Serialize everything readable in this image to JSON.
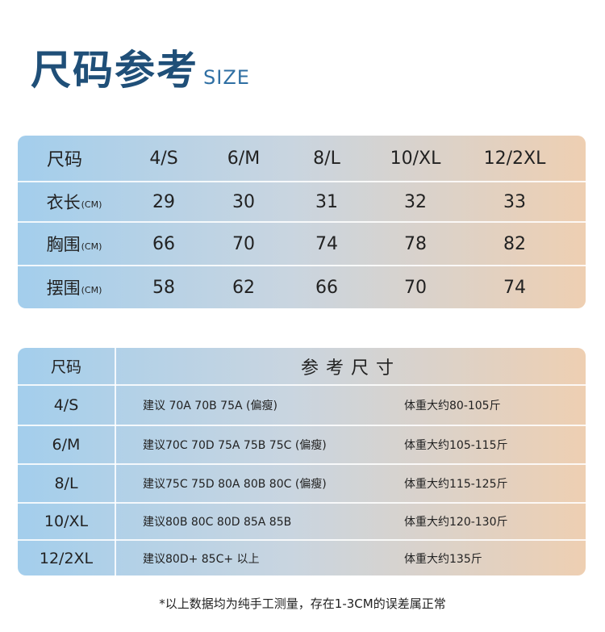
{
  "title": {
    "zh": "尺码参考",
    "en": "SIZE"
  },
  "size_table": {
    "headers": [
      "尺码",
      "4/S",
      "6/M",
      "8/L",
      "10/XL",
      "12/2XL"
    ],
    "rows": [
      {
        "label": "衣长",
        "unit": "(CM)",
        "values": [
          "29",
          "30",
          "31",
          "32",
          "33"
        ]
      },
      {
        "label": "胸围",
        "unit": "(CM)",
        "values": [
          "66",
          "70",
          "74",
          "78",
          "82"
        ]
      },
      {
        "label": "摆围",
        "unit": "(CM)",
        "values": [
          "58",
          "62",
          "66",
          "70",
          "74"
        ]
      }
    ]
  },
  "ref_table": {
    "size_header": "尺码",
    "ref_header": "参考尺寸",
    "rows": [
      {
        "size": "4/S",
        "suggest": "建议 70A 70B 75A (偏瘦)",
        "weight": "体重大约80-105斤"
      },
      {
        "size": "6/M",
        "suggest": "建议70C 70D 75A 75B 75C (偏瘦)",
        "weight": "体重大约105-115斤"
      },
      {
        "size": "8/L",
        "suggest": "建议75C 75D 80A 80B 80C (偏瘦)",
        "weight": "体重大约115-125斤"
      },
      {
        "size": "10/XL",
        "suggest": "建议80B 80C 80D 85A 85B",
        "weight": "体重大约120-130斤"
      },
      {
        "size": "12/2XL",
        "suggest": "建议80D+ 85C+ 以上",
        "weight": "体重大约135斤"
      }
    ]
  },
  "note": "*以上数据均为纯手工测量，存在1-3CM的误差属正常"
}
